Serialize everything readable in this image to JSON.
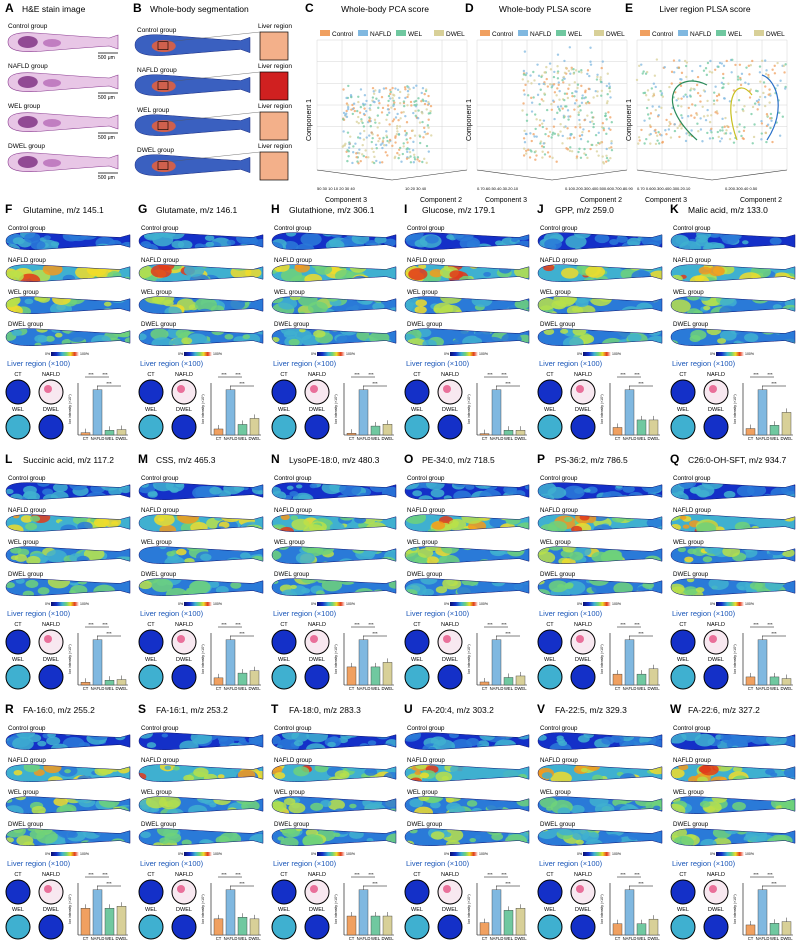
{
  "colors": {
    "heat": [
      "#0a0f6e",
      "#1430c8",
      "#2a7ad8",
      "#3fb0d0",
      "#6ed27a",
      "#b8e04a",
      "#f0dc2a",
      "#f39a1c",
      "#e23a1a",
      "#ffffff"
    ],
    "control": "#f0a060",
    "nafld": "#80b8e0",
    "wel": "#70c8a0",
    "dwel": "#d8d098",
    "blueTitle": "#1a56b8",
    "tissue": "#7a2a80"
  },
  "panelA": {
    "letter": "A",
    "title": "H&E stain image",
    "groups": [
      "Control group",
      "NAFLD group",
      "WEL group",
      "DWEL group"
    ],
    "scale": "500 μm"
  },
  "panelB": {
    "letter": "B",
    "title": "Whole-body segmentation",
    "groups": [
      "Control group",
      "NAFLD group",
      "WEL group",
      "DWEL group"
    ],
    "liverLabel": "Liver region"
  },
  "scores": [
    {
      "letter": "C",
      "title": "Whole-body PCA score",
      "legend": [
        "Control",
        "NAFLD",
        "WEL",
        "DWEL"
      ],
      "yAxis": "Component 1",
      "xAxisLeft": "Component 3",
      "xAxisRight": "Component 2",
      "ticksLeft": "50 30 10 10 20 30 40",
      "ticksRight": "10 20 30 40"
    },
    {
      "letter": "D",
      "title": "Whole-body PLSA score",
      "legend": [
        "Control",
        "NAFLD",
        "WEL",
        "DWEL"
      ],
      "yAxis": "Component 1",
      "xAxisLeft": "Component 3",
      "xAxisRight": "Component 2",
      "ticksLeft": "0.70.60.50.40.30.20.10",
      "ticksRight": "0.100.200.300.400.500.600.700.80.90"
    },
    {
      "letter": "E",
      "title": "Liver region PLSA score",
      "legend": [
        "Control",
        "NAFLD",
        "WEL",
        "DWEL"
      ],
      "yAxis": "Component 1",
      "xAxisLeft": "Component 3",
      "xAxisRight": "Component 2",
      "ticksLeft": "0.70 0.600.300.400.300.20.10",
      "ticksRight": "0.200.300.40 0.50"
    }
  ],
  "metabolitePanels": [
    {
      "letter": "F",
      "title": "Glutamine, m/z 145.1",
      "name": "Glutamine",
      "mz": "145.1"
    },
    {
      "letter": "G",
      "title": "Glutamate, m/z 146.1",
      "name": "Glutamate",
      "mz": "146.1"
    },
    {
      "letter": "H",
      "title": "Glutathione, m/z 306.1",
      "name": "Glutathione",
      "mz": "306.1"
    },
    {
      "letter": "I",
      "title": "Glucose, m/z 179.1",
      "name": "Glucose",
      "mz": "179.1"
    },
    {
      "letter": "J",
      "title": "GPP, m/z 259.0",
      "name": "GPP",
      "mz": "259.0"
    },
    {
      "letter": "K",
      "title": "Malic acid, m/z 133.0",
      "name": "Malic acid",
      "mz": "133.0"
    },
    {
      "letter": "L",
      "title": "Succinic acid, m/z 117.2",
      "name": "Succinic acid",
      "mz": "117.2"
    },
    {
      "letter": "M",
      "title": "CSS, m/z 465.3",
      "name": "CSS",
      "mz": "465.3"
    },
    {
      "letter": "N",
      "title": "LysoPE-18:0, m/z 480.3",
      "name": "LysoPE-18:0",
      "mz": "480.3"
    },
    {
      "letter": "O",
      "title": "PE-34:0, m/z 718.5",
      "name": "PE-34:0",
      "mz": "718.5"
    },
    {
      "letter": "P",
      "title": "PS-36:2, m/z 786.5",
      "name": "PS-36:2",
      "mz": "786.5"
    },
    {
      "letter": "Q",
      "title": "C26:0-OH-SFT, m/z 934.7",
      "name": "C26:0-OH-SFT",
      "mz": "934.7"
    },
    {
      "letter": "R",
      "title": "FA-16:0, m/z 255.2",
      "name": "FA-16:0",
      "mz": "255.2"
    },
    {
      "letter": "S",
      "title": "FA-16:1, m/z 253.2",
      "name": "FA-16:1",
      "mz": "253.2"
    },
    {
      "letter": "T",
      "title": "FA-18:0, m/z 283.3",
      "name": "FA-18:0",
      "mz": "283.3"
    },
    {
      "letter": "U",
      "title": "FA-20:4, m/z 303.2",
      "name": "FA-20:4",
      "mz": "303.2"
    },
    {
      "letter": "V",
      "title": "FA-22:5, m/z 329.3",
      "name": "FA-22:5",
      "mz": "329.3"
    },
    {
      "letter": "W",
      "title": "FA-22:6, m/z 327.2",
      "name": "FA-22:6",
      "mz": "327.2"
    }
  ],
  "panelText": {
    "groups": [
      "Control group",
      "NAFLD group",
      "WEL group",
      "DWEL group"
    ],
    "colorbarMin": "0%",
    "colorbarMax": "100%",
    "liverTitle": "Liver region (×100)",
    "circleLabels": [
      "CT",
      "NAFLD",
      "WEL",
      "DWEL"
    ],
    "yAxis": "Ion intensity (×10⁵)",
    "xLabels": [
      "CT",
      "NAFLD",
      "WEL",
      "DWEL"
    ],
    "sig": [
      "***",
      "***",
      "***",
      "***"
    ]
  },
  "chart_data": {
    "type": "bar",
    "categories": [
      "CT",
      "NAFLD",
      "WEL",
      "DWEL"
    ],
    "series": [
      {
        "values": [
          0.15,
          2.9,
          0.3,
          0.35
        ]
      },
      {
        "values": [
          0.2,
          1.5,
          0.35,
          0.55
        ]
      },
      {
        "values": [
          0.15,
          3.8,
          0.75,
          0.9
        ]
      },
      {
        "values": [
          0.1,
          3.3,
          0.35,
          0.35
        ]
      },
      {
        "values": [
          0.15,
          0.9,
          0.3,
          0.3
        ]
      },
      {
        "values": [
          0.2,
          1.4,
          0.3,
          0.7
        ]
      },
      {
        "values": [
          0.2,
          3.3,
          0.35,
          0.4
        ]
      },
      {
        "values": [
          0.3,
          1.9,
          0.5,
          0.6
        ]
      },
      {
        "values": [
          1.0,
          2.5,
          1.0,
          1.25
        ]
      },
      {
        "values": [
          0.2,
          3.0,
          0.5,
          0.6
        ]
      },
      {
        "values": [
          0.6,
          2.5,
          0.6,
          0.9
        ]
      },
      {
        "values": [
          0.25,
          1.4,
          0.25,
          0.2
        ]
      },
      {
        "values": [
          1.3,
          2.2,
          1.3,
          1.4
        ]
      },
      {
        "values": [
          0.5,
          1.4,
          0.55,
          0.5
        ]
      },
      {
        "values": [
          1.3,
          3.1,
          1.3,
          1.3
        ]
      },
      {
        "values": [
          0.6,
          2.2,
          1.2,
          1.3
        ]
      },
      {
        "values": [
          0.5,
          2.0,
          0.5,
          0.7
        ]
      },
      {
        "values": [
          0.6,
          2.7,
          0.7,
          0.8
        ]
      }
    ]
  }
}
